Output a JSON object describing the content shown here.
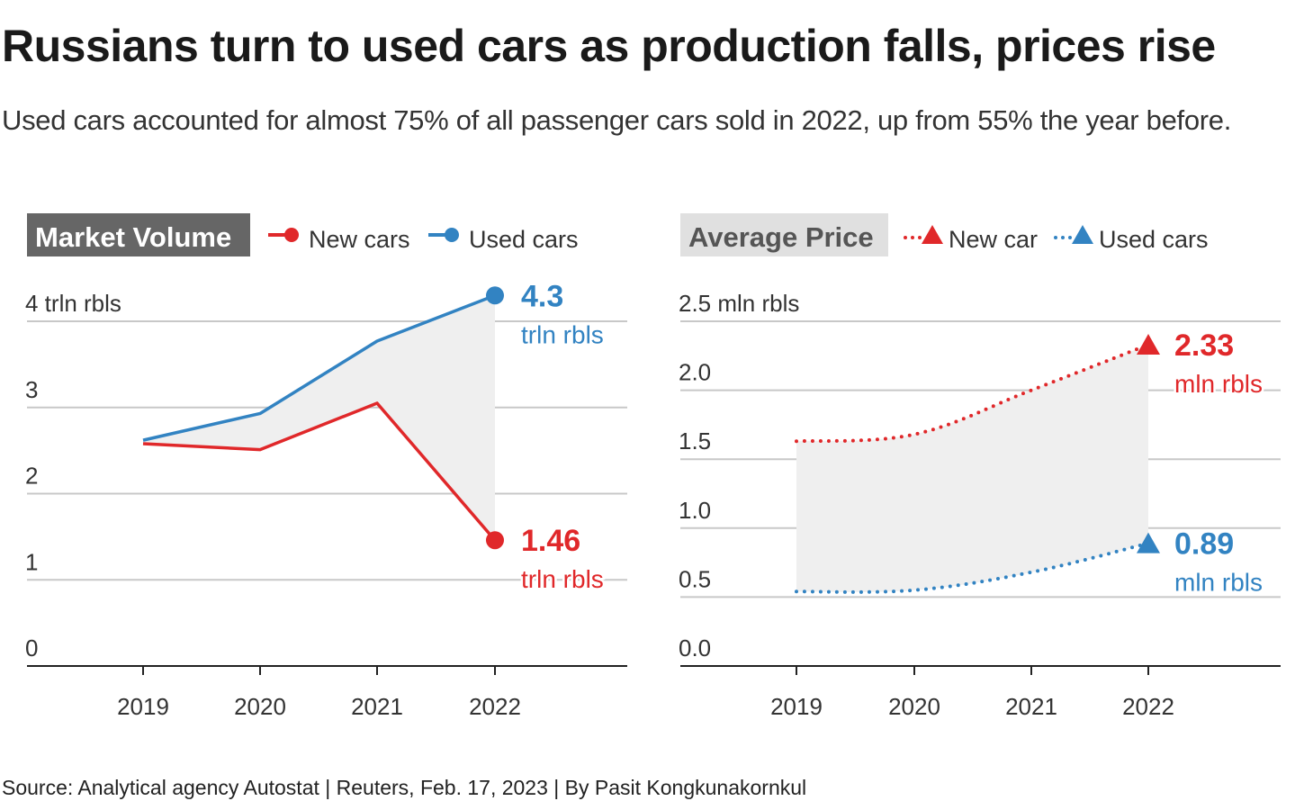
{
  "title": "Russians turn to used cars as production falls, prices rise",
  "subtitle": "Used cars accounted for almost 75% of all passenger cars sold in 2022, up from 55% the year before.",
  "source": "Source: Analytical agency Autostat | Reuters, Feb. 17, 2023 | By Pasit Kongkunakornkul",
  "colors": {
    "new": "#e0282a",
    "used": "#3283c2",
    "fill": "#efefef",
    "grid": "#c8c8c8"
  },
  "chart_data": [
    {
      "type": "line",
      "title": "Market Volume",
      "categories": [
        "2019",
        "2020",
        "2021",
        "2022"
      ],
      "ylim": [
        0,
        4
      ],
      "yticks": [
        "0",
        "1",
        "2",
        "3",
        "4 trln rbls"
      ],
      "grid": true,
      "legend": "top",
      "series": [
        {
          "name": "New cars",
          "values": [
            2.58,
            2.51,
            3.05,
            1.46
          ],
          "end_label": "1.46",
          "end_unit": "trln rbls",
          "style": "solid",
          "marker": "circle"
        },
        {
          "name": "Used cars",
          "values": [
            2.62,
            2.93,
            3.77,
            4.3
          ],
          "end_label": "4.3",
          "end_unit": "trln rbls",
          "style": "solid",
          "marker": "circle"
        }
      ]
    },
    {
      "type": "line",
      "title": "Average Price",
      "categories": [
        "2019",
        "2020",
        "2021",
        "2022"
      ],
      "ylim": [
        0,
        2.5
      ],
      "yticks": [
        "0.0",
        "0.5",
        "1.0",
        "1.5",
        "2.0",
        "2.5 mln rbls"
      ],
      "grid": true,
      "legend": "top",
      "series": [
        {
          "name": "New car",
          "values": [
            1.63,
            1.68,
            2.0,
            2.33
          ],
          "end_label": "2.33",
          "end_unit": "mln rbls",
          "style": "dotted",
          "marker": "triangle"
        },
        {
          "name": "Used cars",
          "values": [
            0.54,
            0.55,
            0.68,
            0.89
          ],
          "end_label": "0.89",
          "end_unit": "mln rbls",
          "style": "dotted",
          "marker": "triangle"
        }
      ]
    }
  ]
}
